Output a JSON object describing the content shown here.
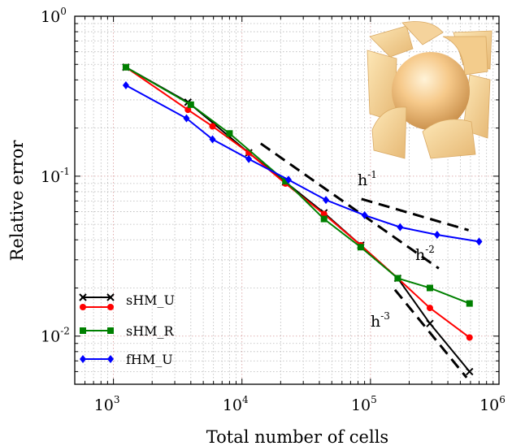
{
  "chart_data": {
    "type": "line",
    "xlabel": "Total number of cells",
    "ylabel": "Relative error",
    "xscale": "log",
    "yscale": "log",
    "xlim": [
      500,
      1000000
    ],
    "ylim": [
      0.005,
      1
    ],
    "grid": true,
    "legend_position": "bottom-left",
    "x_ticks": [
      {
        "value": 1000,
        "base": "10",
        "exp": "3"
      },
      {
        "value": 10000,
        "base": "10",
        "exp": "4"
      },
      {
        "value": 100000,
        "base": "10",
        "exp": "5"
      },
      {
        "value": 1000000,
        "base": "10",
        "exp": "6"
      }
    ],
    "y_ticks": [
      {
        "value": 0.01,
        "base": "10",
        "exp": "-2"
      },
      {
        "value": 0.1,
        "base": "10",
        "exp": "-1"
      },
      {
        "value": 1,
        "base": "10",
        "exp": "0"
      }
    ],
    "series": [
      {
        "name": "sHM_U",
        "color": "#000000",
        "marker": "x",
        "x": [
          1250,
          3800,
          11300,
          21800,
          43500,
          84000,
          163000,
          290000,
          590000
        ],
        "y": [
          0.48,
          0.29,
          0.14,
          0.092,
          0.059,
          0.037,
          0.023,
          0.012,
          0.006
        ]
      },
      {
        "name": "",
        "color": "#ff0000",
        "marker": "circle",
        "x": [
          1250,
          3800,
          5900,
          11300,
          21800,
          43500,
          84000,
          163000,
          290000,
          590000
        ],
        "y": [
          0.48,
          0.26,
          0.205,
          0.14,
          0.09,
          0.058,
          0.037,
          0.023,
          0.015,
          0.0098
        ]
      },
      {
        "name": "sHM_R",
        "color": "#008000",
        "marker": "square",
        "x": [
          1250,
          4000,
          8000,
          21800,
          43500,
          84000,
          163000,
          290000,
          590000
        ],
        "y": [
          0.48,
          0.28,
          0.185,
          0.093,
          0.054,
          0.036,
          0.023,
          0.02,
          0.016
        ]
      },
      {
        "name": "fHM_U",
        "color": "#0000ff",
        "marker": "diamond",
        "x": [
          1250,
          3700,
          5900,
          11300,
          23000,
          45000,
          90000,
          170000,
          330000,
          700000
        ],
        "y": [
          0.37,
          0.23,
          0.17,
          0.128,
          0.095,
          0.071,
          0.057,
          0.048,
          0.043,
          0.039
        ]
      }
    ],
    "reference_lines": [
      {
        "label": "h",
        "exp": "-1",
        "x": [
          85000,
          580000
        ],
        "y": [
          0.072,
          0.046
        ]
      },
      {
        "label": "h",
        "exp": "-2",
        "x": [
          14000,
          340000
        ],
        "y": [
          0.16,
          0.0265
        ]
      },
      {
        "label": "h",
        "exp": "-3",
        "x": [
          155000,
          560000
        ],
        "y": [
          0.0195,
          0.0055
        ]
      }
    ],
    "legend_entries": [
      "sHM_U",
      "",
      "sHM_R",
      "fHM_U"
    ]
  }
}
